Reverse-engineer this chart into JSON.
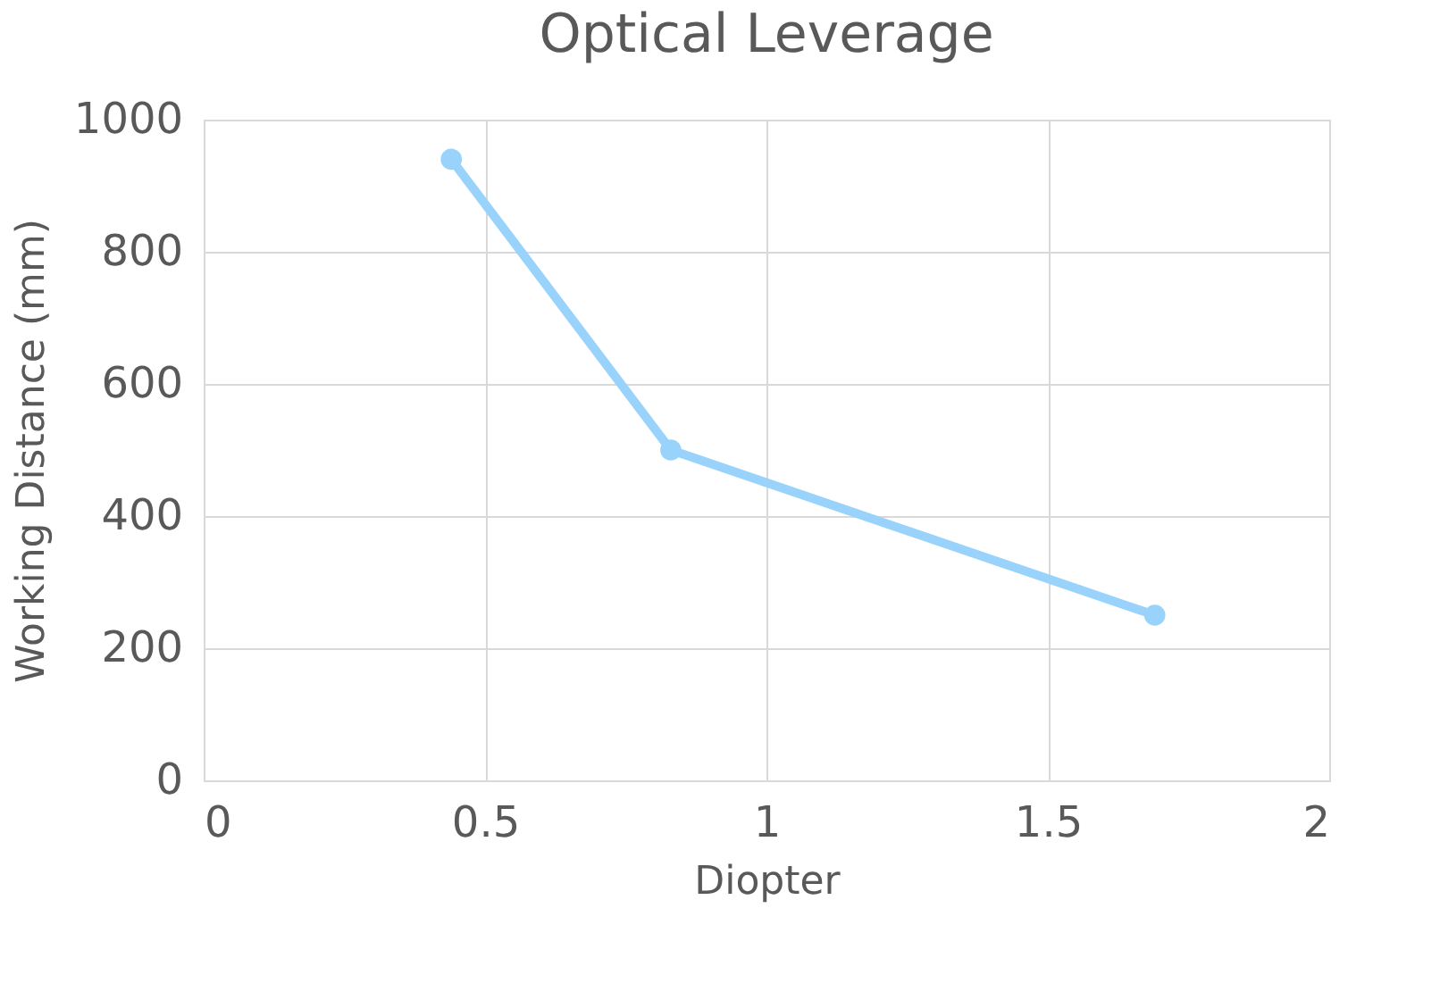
{
  "chart_data": {
    "type": "line",
    "title": "Optical Leverage",
    "xlabel": "Diopter",
    "ylabel": "Working Distance (mm)",
    "x": [
      0.44,
      0.83,
      1.69
    ],
    "series": [
      {
        "color": "#99d3fb",
        "values": [
          940,
          500,
          250
        ]
      }
    ],
    "xlim": [
      0,
      2
    ],
    "xticks": [
      0,
      0.5,
      1,
      1.5,
      2
    ],
    "ylim": [
      0,
      1000
    ],
    "yticks": [
      0,
      200,
      400,
      600,
      800,
      1000
    ],
    "grid": true,
    "marker": "circle",
    "line_style": "solid"
  }
}
